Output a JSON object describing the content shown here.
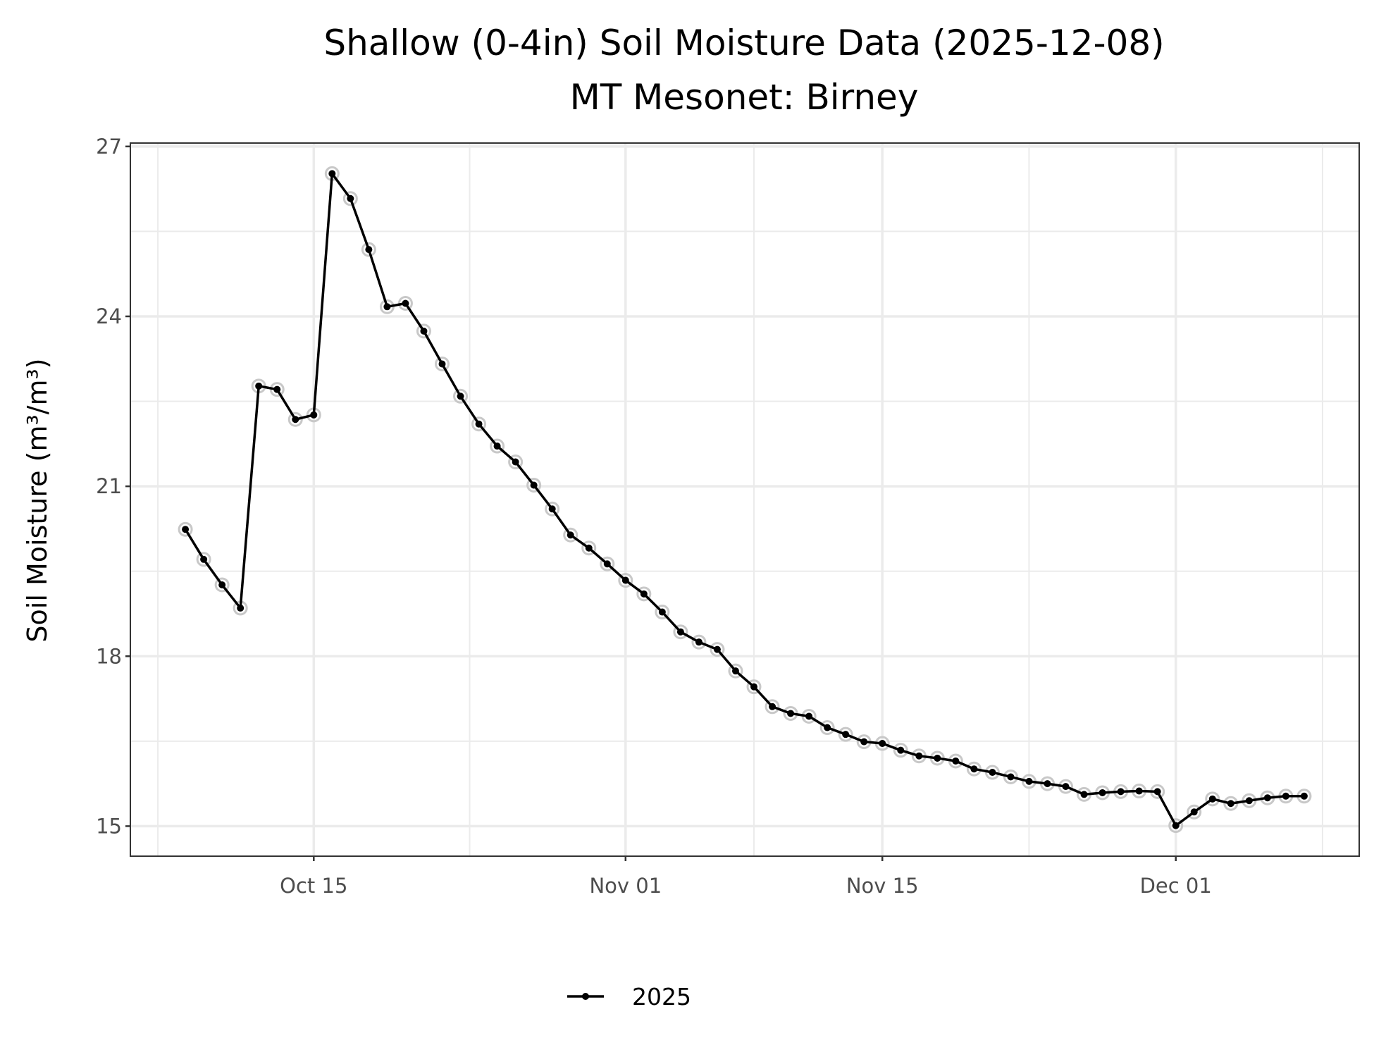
{
  "chart_data": {
    "type": "line",
    "title": "Shallow (0-4in) Soil Moisture Data (2025-12-08)",
    "subtitle": "MT Mesonet: Birney",
    "xlabel": "",
    "ylabel": "Soil Moisture (m³/m³)",
    "ylim": [
      14.47,
      27.06
    ],
    "xlim": [
      "2025-10-05",
      "2025-12-11"
    ],
    "yticks": [
      15,
      18,
      21,
      24,
      27
    ],
    "xticks": [
      {
        "date": "2025-10-15",
        "label": "Oct 15"
      },
      {
        "date": "2025-11-01",
        "label": "Nov 01"
      },
      {
        "date": "2025-11-15",
        "label": "Nov 15"
      },
      {
        "date": "2025-12-01",
        "label": "Dec 01"
      }
    ],
    "grid": true,
    "legend": {
      "position": "bottom",
      "entries": [
        "2025"
      ]
    },
    "series": [
      {
        "name": "2025",
        "color": "#000000",
        "start_date": "2025-10-08",
        "step_days": 1,
        "values": [
          20.24,
          19.71,
          19.26,
          18.85,
          22.77,
          22.71,
          22.18,
          22.26,
          26.52,
          26.08,
          25.18,
          24.17,
          24.23,
          23.74,
          23.16,
          22.59,
          22.1,
          21.71,
          21.43,
          21.02,
          20.6,
          20.14,
          19.91,
          19.63,
          19.34,
          19.1,
          18.78,
          18.43,
          18.25,
          18.12,
          17.74,
          17.46,
          17.11,
          16.99,
          16.94,
          16.74,
          16.62,
          16.49,
          16.46,
          16.34,
          16.24,
          16.2,
          16.15,
          16.01,
          15.95,
          15.87,
          15.79,
          15.75,
          15.7,
          15.56,
          15.59,
          15.61,
          15.62,
          15.61,
          15.01,
          15.25,
          15.48,
          15.4,
          15.45,
          15.5,
          15.53,
          15.53
        ]
      }
    ]
  }
}
